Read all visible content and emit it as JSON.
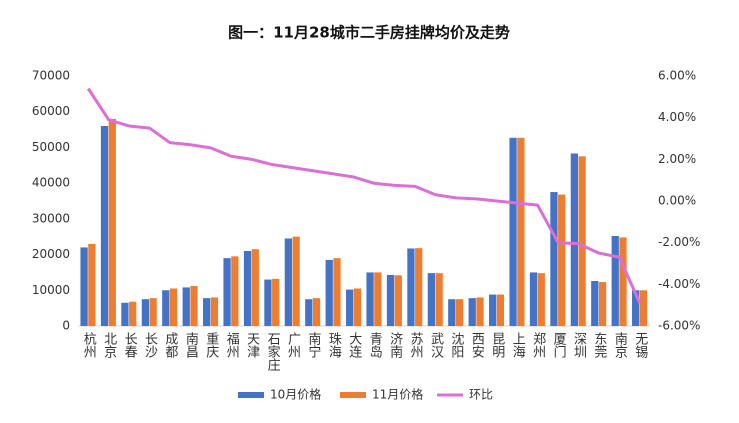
{
  "chart_data": {
    "type": "bar-line",
    "title": "图一：11月28城市二手房挂牌均价及走势",
    "categories": [
      "杭州",
      "北京",
      "长春",
      "长沙",
      "成都",
      "南昌",
      "重庆",
      "福州",
      "天津",
      "石家庄",
      "广州",
      "南宁",
      "珠海",
      "大连",
      "青岛",
      "济南",
      "苏州",
      "武汉",
      "沈阳",
      "西安",
      "昆明",
      "上海",
      "郑州",
      "厦门",
      "深圳",
      "东莞",
      "南京",
      "无锡"
    ],
    "series": [
      {
        "name": "10月价格",
        "type": "bar",
        "color": "#4472c4",
        "values": [
          22000,
          56000,
          6500,
          7500,
          10000,
          10800,
          7800,
          19000,
          21000,
          13000,
          24500,
          7500,
          18500,
          10200,
          15000,
          14300,
          21700,
          14800,
          7500,
          7800,
          8800,
          52700,
          15000,
          37500,
          48300,
          12600,
          25200,
          10000
        ]
      },
      {
        "name": "11月价格",
        "type": "bar",
        "color": "#ed7d31",
        "values": [
          23000,
          58000,
          6800,
          7800,
          10500,
          11200,
          8000,
          19500,
          21500,
          13200,
          25000,
          7800,
          19000,
          10500,
          15000,
          14200,
          21800,
          14800,
          7500,
          8000,
          8800,
          52700,
          14800,
          36800,
          47500,
          12300,
          24800,
          10000
        ]
      },
      {
        "name": "环比",
        "type": "line",
        "axis": "y2",
        "color": "#da70d6",
        "values": [
          5.4,
          3.9,
          3.6,
          3.5,
          2.8,
          2.7,
          2.55,
          2.15,
          2.0,
          1.75,
          1.6,
          1.45,
          1.3,
          1.15,
          0.85,
          0.75,
          0.7,
          0.3,
          0.15,
          0.1,
          0,
          -0.1,
          -0.2,
          -2.0,
          -2.05,
          -2.5,
          -2.7,
          -4.9
        ]
      }
    ],
    "ylim": [
      0,
      70000
    ],
    "yticks": [
      0,
      10000,
      20000,
      30000,
      40000,
      50000,
      60000,
      70000
    ],
    "y2lim": [
      -6,
      6
    ],
    "y2ticks": [
      {
        "value": -6,
        "label": "-6.00%"
      },
      {
        "value": -4,
        "label": "-4.00%"
      },
      {
        "value": -2,
        "label": "-2.00%"
      },
      {
        "value": 0,
        "label": "0.00%"
      },
      {
        "value": 2,
        "label": "2.00%"
      },
      {
        "value": 4,
        "label": "4.00%"
      },
      {
        "value": 6,
        "label": "6.00%"
      }
    ],
    "legend": "bottom"
  }
}
